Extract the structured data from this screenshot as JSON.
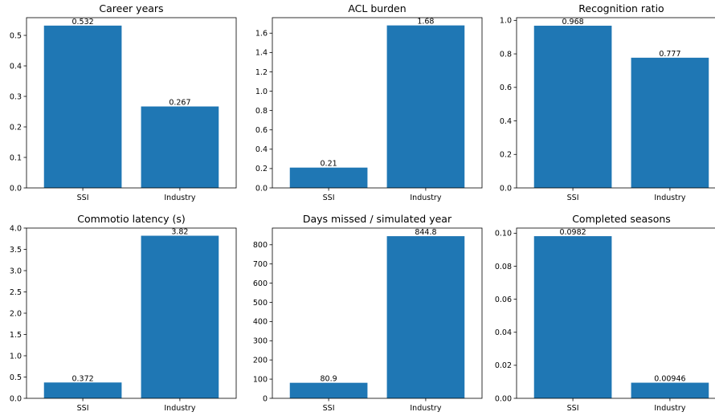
{
  "chart_data": [
    {
      "type": "bar",
      "title": "Career years",
      "categories": [
        "SSI",
        "Industry"
      ],
      "values": [
        0.532,
        0.267
      ],
      "data_labels": [
        "0.532",
        "0.267"
      ],
      "ylim": [
        0,
        0.558
      ],
      "yticks": [
        0.0,
        0.1,
        0.2,
        0.3,
        0.4,
        0.5
      ],
      "ytick_labels": [
        "0.0",
        "0.1",
        "0.2",
        "0.3",
        "0.4",
        "0.5"
      ],
      "xlabel": "",
      "ylabel": "",
      "grid": false
    },
    {
      "type": "bar",
      "title": "ACL burden",
      "categories": [
        "SSI",
        "Industry"
      ],
      "values": [
        0.21,
        1.68
      ],
      "data_labels": [
        "0.21",
        "1.68"
      ],
      "ylim": [
        0,
        1.76
      ],
      "yticks": [
        0.0,
        0.2,
        0.4,
        0.6,
        0.8,
        1.0,
        1.2,
        1.4,
        1.6
      ],
      "ytick_labels": [
        "0.0",
        "0.2",
        "0.4",
        "0.6",
        "0.8",
        "1.0",
        "1.2",
        "1.4",
        "1.6"
      ],
      "xlabel": "",
      "ylabel": "",
      "grid": false
    },
    {
      "type": "bar",
      "title": "Recognition ratio",
      "categories": [
        "SSI",
        "Industry"
      ],
      "values": [
        0.968,
        0.777
      ],
      "data_labels": [
        "0.968",
        "0.777"
      ],
      "ylim": [
        0,
        1.016
      ],
      "yticks": [
        0.0,
        0.2,
        0.4,
        0.6,
        0.8,
        1.0
      ],
      "ytick_labels": [
        "0.0",
        "0.2",
        "0.4",
        "0.6",
        "0.8",
        "1.0"
      ],
      "xlabel": "",
      "ylabel": "",
      "grid": false
    },
    {
      "type": "bar",
      "title": "Commotio latency (s)",
      "categories": [
        "SSI",
        "Industry"
      ],
      "values": [
        0.372,
        3.82
      ],
      "data_labels": [
        "0.372",
        "3.82"
      ],
      "ylim": [
        0,
        4.0
      ],
      "yticks": [
        0.0,
        0.5,
        1.0,
        1.5,
        2.0,
        2.5,
        3.0,
        3.5,
        4.0
      ],
      "ytick_labels": [
        "0.0",
        "0.5",
        "1.0",
        "1.5",
        "2.0",
        "2.5",
        "3.0",
        "3.5",
        "4.0"
      ],
      "xlabel": "",
      "ylabel": "",
      "grid": false
    },
    {
      "type": "bar",
      "title": "Days missed / simulated year",
      "categories": [
        "SSI",
        "Industry"
      ],
      "values": [
        80.9,
        844.8
      ],
      "data_labels": [
        "80.9",
        "844.8"
      ],
      "ylim": [
        0,
        887
      ],
      "yticks": [
        0,
        100,
        200,
        300,
        400,
        500,
        600,
        700,
        800
      ],
      "ytick_labels": [
        "0",
        "100",
        "200",
        "300",
        "400",
        "500",
        "600",
        "700",
        "800"
      ],
      "xlabel": "",
      "ylabel": "",
      "grid": false
    },
    {
      "type": "bar",
      "title": "Completed seasons",
      "categories": [
        "SSI",
        "Industry"
      ],
      "values": [
        0.0982,
        0.00946
      ],
      "data_labels": [
        "0.0982",
        "0.00946"
      ],
      "ylim": [
        0,
        0.1031
      ],
      "yticks": [
        0.0,
        0.02,
        0.04,
        0.06,
        0.08,
        0.1
      ],
      "ytick_labels": [
        "0.00",
        "0.02",
        "0.04",
        "0.06",
        "0.08",
        "0.10"
      ],
      "xlabel": "",
      "ylabel": "",
      "grid": false
    }
  ],
  "colors": {
    "bar": "#1f77b4",
    "axis": "#000000",
    "background": "#ffffff"
  }
}
